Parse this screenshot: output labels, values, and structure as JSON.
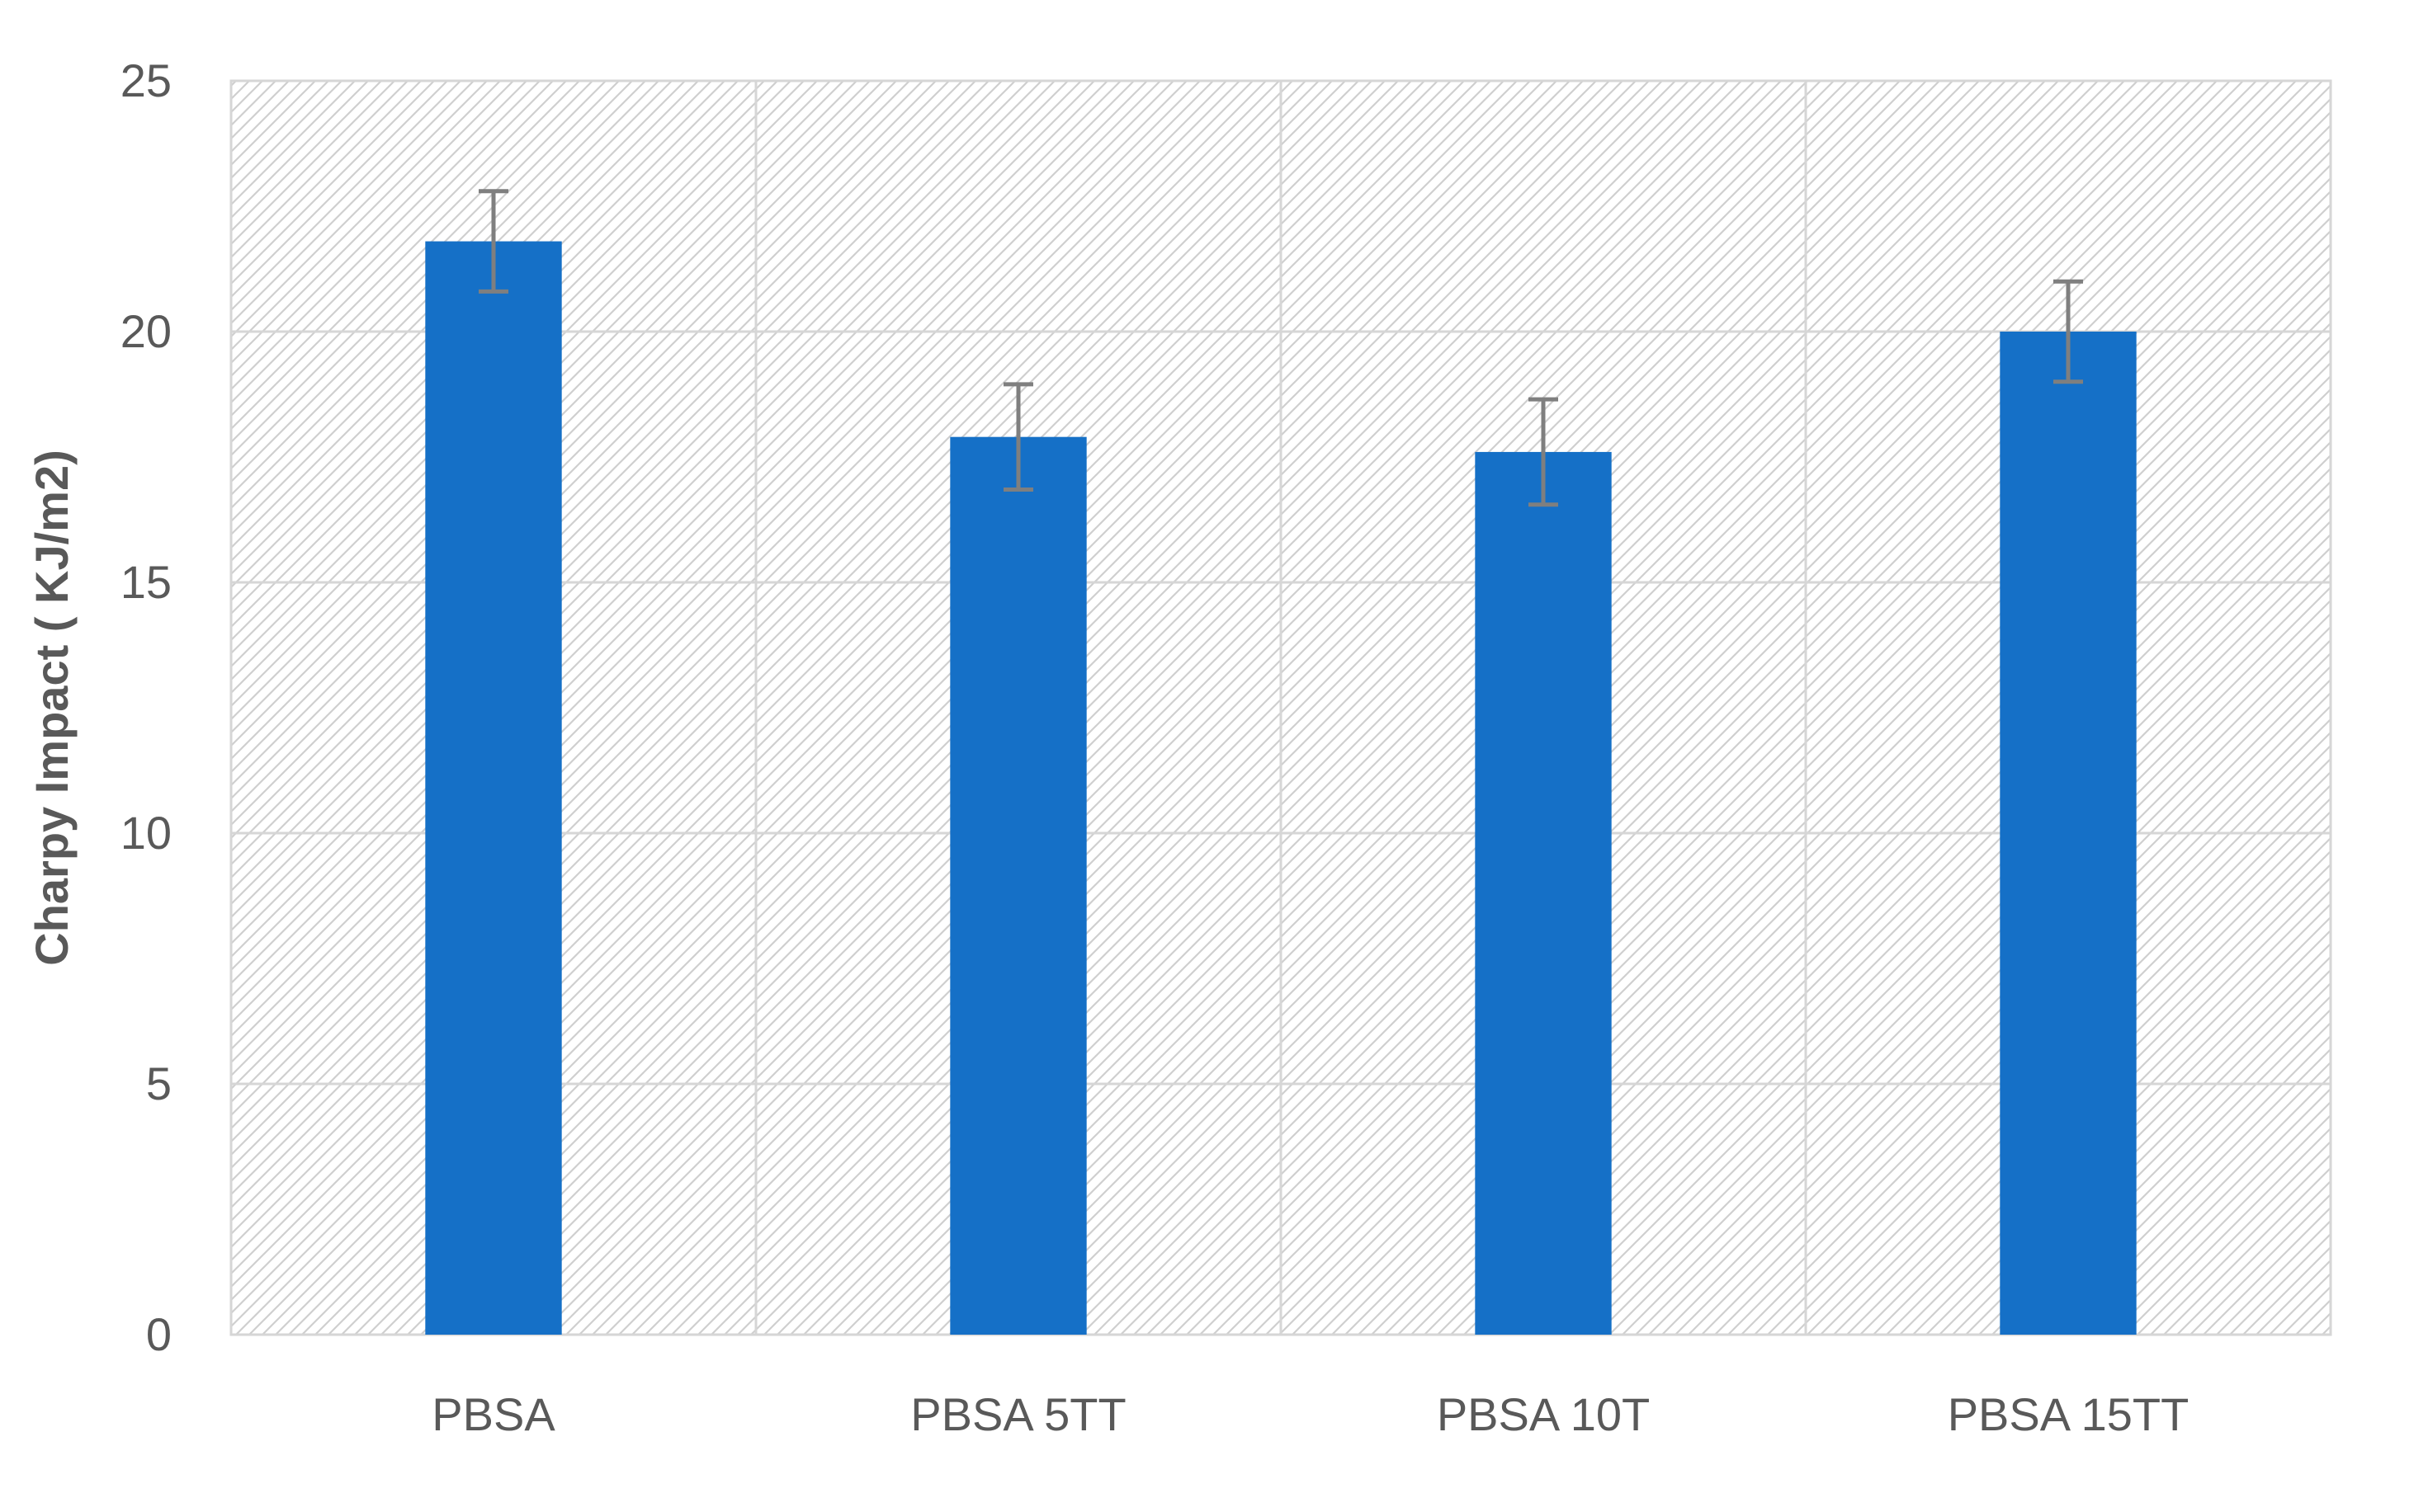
{
  "chart_data": {
    "type": "bar",
    "title": "",
    "xlabel": "",
    "ylabel": "Charpy Impact ( KJ/m2)",
    "categories": [
      "PBSA",
      "PBSA 5TT",
      "PBSA 10T",
      "PBSA 15TT"
    ],
    "values": [
      21.8,
      17.9,
      17.6,
      20.0
    ],
    "error": [
      1.0,
      1.05,
      1.05,
      1.0
    ],
    "ylim": [
      0,
      25
    ],
    "yticks": [
      0,
      5,
      10,
      15,
      20,
      25
    ],
    "grid": true,
    "legend": "none",
    "colors": {
      "bar": "#1570c7",
      "error_bar": "#7f7f7f",
      "grid": "#d6d6d6",
      "hatch": "#cfcfcf",
      "text": "#595959"
    }
  }
}
